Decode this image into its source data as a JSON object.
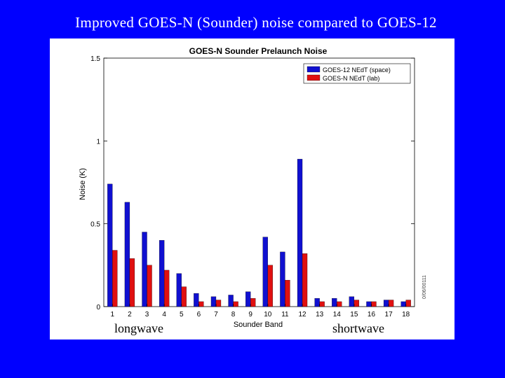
{
  "slide": {
    "title": "Improved GOES-N (Sounder) noise compared to GOES-12",
    "caption_left": "longwave",
    "caption_right": "shortwave",
    "side_stamp": "0/06/00111"
  },
  "chart_data": {
    "type": "bar",
    "title": "GOES-N Sounder Prelaunch Noise",
    "xlabel": "Sounder Band",
    "ylabel": "Noise (K)",
    "ylim": [
      0,
      1.5
    ],
    "yticks": [
      0,
      0.5,
      1,
      1.5
    ],
    "ytick_labels": [
      "0",
      "0.5",
      "1",
      "1.5"
    ],
    "categories": [
      "1",
      "2",
      "3",
      "4",
      "5",
      "6",
      "7",
      "8",
      "9",
      "10",
      "11",
      "12",
      "13",
      "14",
      "15",
      "16",
      "17",
      "18"
    ],
    "legend_position": "top-right",
    "series": [
      {
        "name": "GOES-12 NEdT (space)",
        "color": "#1010d0",
        "values": [
          0.74,
          0.63,
          0.45,
          0.4,
          0.2,
          0.08,
          0.06,
          0.07,
          0.09,
          0.42,
          0.33,
          0.89,
          0.05,
          0.05,
          0.06,
          0.03,
          0.04,
          0.03
        ]
      },
      {
        "name": "GOES-N NEdT (lab)",
        "color": "#e01010",
        "values": [
          0.34,
          0.29,
          0.25,
          0.22,
          0.12,
          0.03,
          0.04,
          0.03,
          0.05,
          0.25,
          0.16,
          0.32,
          0.03,
          0.03,
          0.04,
          0.03,
          0.04,
          0.04
        ]
      }
    ]
  }
}
